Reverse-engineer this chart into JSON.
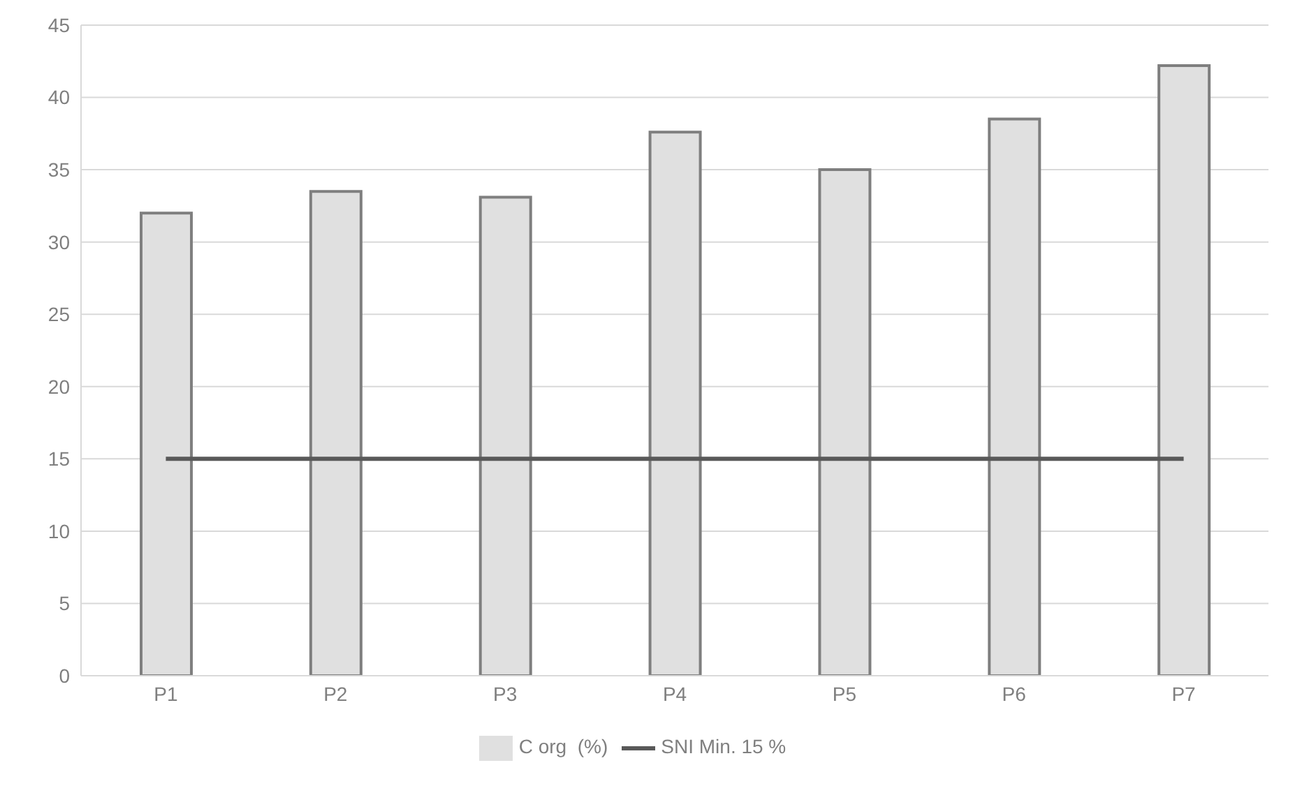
{
  "chart_data": {
    "type": "bar",
    "categories": [
      "P1",
      "P2",
      "P3",
      "P4",
      "P5",
      "P6",
      "P7"
    ],
    "series": [
      {
        "name": "C org  (%)",
        "color": "#e0e0e0",
        "values": [
          32,
          33.5,
          33.1,
          37.6,
          35,
          38.5,
          42.2
        ]
      },
      {
        "name": "SNI Min. 15 %",
        "type": "line",
        "color": "#595959",
        "values": [
          15,
          15,
          15,
          15,
          15,
          15,
          15
        ]
      }
    ],
    "ylim": [
      0,
      45
    ],
    "yticks": [
      0,
      5,
      10,
      15,
      20,
      25,
      30,
      35,
      40,
      45
    ],
    "grid": "y",
    "legend": "bottom",
    "marker": "none",
    "line_style": "solid"
  }
}
